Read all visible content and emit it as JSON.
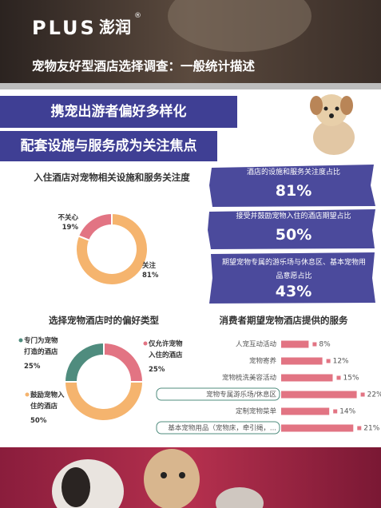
{
  "header": {
    "brand": "PLUS",
    "brand_cn": "澎润",
    "mark": "®",
    "title": "宠物友好型酒店选择调查：一般统计描述"
  },
  "banner": {
    "lines": [
      "携宠出游者偏好多样化",
      "配套设施与服务成为关注焦点"
    ]
  },
  "highlights": [
    {
      "label": "酒店的设施和服务关注度占比",
      "value": "81%"
    },
    {
      "label": "接受并鼓励宠物入住的酒店期望占比",
      "value": "50%"
    },
    {
      "label": "期望宠物专属的游乐场与休息区、基本宠物用品意愿占比",
      "value": "43%"
    }
  ],
  "chart_data": [
    {
      "type": "donut",
      "title": "入住酒店对宠物相关设施和服务关注度",
      "categories": [
        "不关心",
        "关注"
      ],
      "values": [
        19,
        81
      ],
      "value_labels": [
        "19%",
        "81%"
      ],
      "colors": [
        "#e27483",
        "#f5b46e"
      ]
    },
    {
      "type": "donut",
      "title": "选择宠物酒店时的偏好类型",
      "categories": [
        "专门为宠物打造的酒店",
        "仅允许宠物入住的酒店",
        "鼓励宠物入住的酒店"
      ],
      "values": [
        25,
        25,
        50
      ],
      "value_labels": [
        "25%",
        "25%",
        "50%"
      ],
      "colors": [
        "#4f8c7e",
        "#e27483",
        "#f5b46e"
      ]
    },
    {
      "type": "bar",
      "orientation": "horizontal",
      "title": "消费者期望宠物酒店提供的服务",
      "categories": [
        "人宠互动活动",
        "宠物寄养",
        "宠物梳洗美容活动",
        "宠物专属游乐场/休息区",
        "定制宠物菜单",
        "基本宠物用品（宠物床，牵引绳，..."
      ],
      "values": [
        8,
        12,
        15,
        22,
        14,
        21
      ],
      "value_labels": [
        "8%",
        "12%",
        "15%",
        "22%",
        "14%",
        "21%"
      ],
      "color": "#e27483"
    }
  ]
}
